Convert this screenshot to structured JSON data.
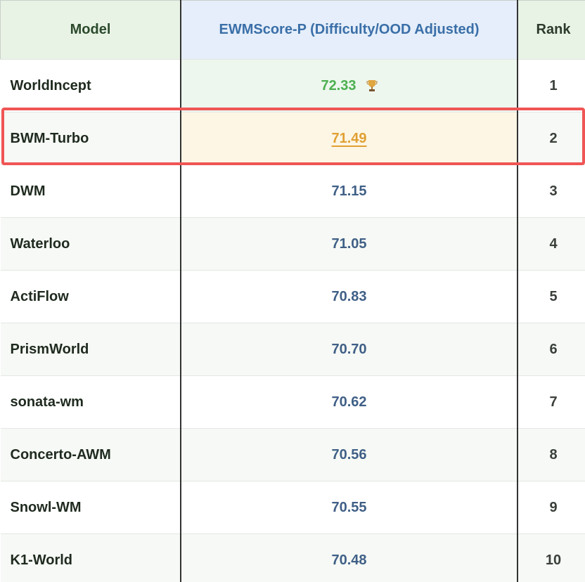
{
  "table": {
    "header": [
      "Model",
      "EWMScore-P (Difficulty/OOD Adjusted)",
      "Rank"
    ],
    "rows": [
      [
        "WorldIncept",
        "72.33",
        "1"
      ],
      [
        "BWM-Turbo",
        "71.49",
        "2"
      ],
      [
        "DWM",
        "71.15",
        "3"
      ],
      [
        "Waterloo",
        "71.05",
        "4"
      ],
      [
        "ActiFlow",
        "70.83",
        "5"
      ],
      [
        "PrismWorld",
        "70.70",
        "6"
      ],
      [
        "sonata-wm",
        "70.62",
        "7"
      ],
      [
        "Concerto-AWM",
        "70.56",
        "8"
      ],
      [
        "Snowl-WM",
        "70.55",
        "9"
      ],
      [
        "K1-World",
        "70.48",
        "10"
      ]
    ]
  }
}
